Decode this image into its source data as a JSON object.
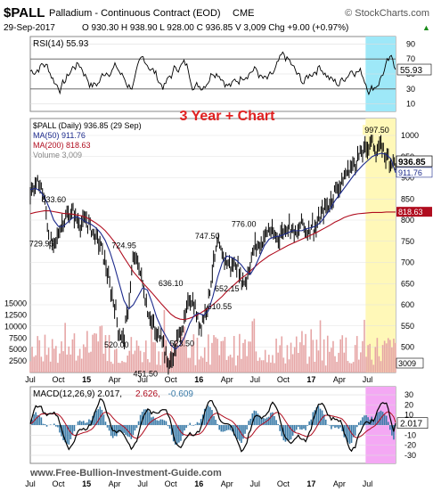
{
  "header": {
    "symbol": "$PALL",
    "name": "Palladium - Continuous Contract (EOD)",
    "exchange": "CME",
    "brand": "© StockCharts.com",
    "date": "29-Sep-2017",
    "ohlc": "O 930.30  H 938.90  L 928.00  C 936.85  V 3,009  Chg +9.00 (+0.97%)",
    "ohlc_arrow": "▲"
  },
  "overlay_title": "3 Year + Chart",
  "footer_url": "www.Free-Bullion-Investment-Guide.com",
  "colors": {
    "price": "#000000",
    "ma50": "#1c2a8c",
    "ma200": "#b00d1f",
    "highlight_yellow": "#fff8b8",
    "highlight_cyan": "#9ee8f8",
    "highlight_magenta": "#f4a8f4",
    "volume": "#e6a6a6",
    "title_red": "#e02020",
    "macd_hist": "#3a7ba8"
  },
  "chart_data": [
    {
      "type": "line",
      "panel": "RSI",
      "legend": "RSI(14) 55.93",
      "y_ticks": [
        10,
        30,
        50,
        70,
        90
      ],
      "ylim": [
        0,
        100
      ],
      "last_value_label": "55.93",
      "overbought": 70,
      "oversold": 30
    },
    {
      "type": "line",
      "panel": "Price",
      "legend": [
        {
          "label": "$PALL (Daily) 936.85 (29 Sep)",
          "color": "#000000"
        },
        {
          "label": "MA(50) 911.76",
          "color": "#1c2a8c"
        },
        {
          "label": "MA(200) 818.63",
          "color": "#b00d1f"
        },
        {
          "label": "Volume 3,009",
          "color": "#888888"
        }
      ],
      "y_ticks_right": [
        500,
        550,
        600,
        650,
        700,
        750,
        800,
        850,
        900,
        950,
        1000
      ],
      "ylim": [
        440,
        1040
      ],
      "volume_ticks_left": [
        "2500",
        "5000",
        "7500",
        "10000",
        "12500",
        "15000"
      ],
      "volume_ticks_values": [
        2500,
        5000,
        7500,
        10000,
        12500,
        15000
      ],
      "right_labels": {
        "price": "936.85",
        "ma50": "911.76",
        "ma200": "818.63",
        "volume": "3009"
      },
      "annotations": [
        {
          "label": "997.50",
          "x": 37.0,
          "y": 997.5
        },
        {
          "label": "833.60",
          "x": 2.5,
          "y": 833.6
        },
        {
          "label": "729.95",
          "x": 1.2,
          "y": 729.95
        },
        {
          "label": "724.95",
          "x": 10.0,
          "y": 724.95
        },
        {
          "label": "520.00",
          "x": 9.2,
          "y": 520.0
        },
        {
          "label": "451.50",
          "x": 12.3,
          "y": 451.5
        },
        {
          "label": "636.10",
          "x": 15.0,
          "y": 636.1
        },
        {
          "label": "523.50",
          "x": 16.2,
          "y": 523.5
        },
        {
          "label": "747.50",
          "x": 18.9,
          "y": 747.5
        },
        {
          "label": "652.15",
          "x": 21.0,
          "y": 652.15
        },
        {
          "label": "610.55",
          "x": 20.2,
          "y": 610.55
        },
        {
          "label": "776.00",
          "x": 22.8,
          "y": 776.0
        }
      ],
      "price_series_x_unit": "months since Jul 2014",
      "price_x": [
        0,
        0.5,
        1,
        1.5,
        2,
        2.5,
        3,
        3.5,
        4,
        4.5,
        5,
        5.5,
        6,
        6.5,
        7,
        7.5,
        8,
        8.5,
        9,
        9.5,
        10,
        10.5,
        11,
        11.5,
        12,
        12.5,
        13,
        13.5,
        14,
        14.5,
        15,
        15.5,
        16,
        16.5,
        17,
        17.5,
        18,
        18.5,
        19,
        19.5,
        20,
        20.5,
        21,
        21.5,
        22,
        22.5,
        23,
        23.5,
        24,
        24.5,
        25,
        25.5,
        26,
        26.5,
        27,
        27.5,
        28,
        28.5,
        29,
        29.5,
        30,
        30.5,
        31,
        31.5,
        32,
        32.5,
        33,
        33.5,
        34,
        34.5,
        35,
        35.5,
        36,
        36.5,
        37,
        37.5,
        38,
        38.5,
        39
      ],
      "price_y": [
        870,
        880,
        889,
        850,
        760,
        730,
        770,
        800,
        810,
        820,
        800,
        790,
        800,
        780,
        760,
        740,
        700,
        640,
        600,
        530,
        520,
        600,
        710,
        700,
        650,
        590,
        560,
        520,
        540,
        470,
        460,
        500,
        540,
        560,
        620,
        600,
        550,
        570,
        610,
        690,
        740,
        720,
        700,
        690,
        700,
        660,
        655,
        700,
        740,
        740,
        760,
        780,
        760,
        760,
        775,
        790,
        780,
        760,
        800,
        770,
        790,
        780,
        810,
        830,
        840,
        870,
        880,
        900,
        920,
        930,
        950,
        960,
        975,
        990,
        960,
        975,
        950,
        940,
        937
      ],
      "ma50_y": [
        872,
        875,
        870,
        855,
        830,
        800,
        785,
        785,
        795,
        805,
        808,
        802,
        795,
        790,
        782,
        770,
        752,
        725,
        690,
        650,
        610,
        590,
        600,
        620,
        640,
        635,
        605,
        570,
        545,
        525,
        505,
        495,
        505,
        525,
        555,
        575,
        580,
        575,
        585,
        620,
        665,
        700,
        715,
        712,
        705,
        695,
        680,
        672,
        690,
        715,
        740,
        755,
        760,
        762,
        765,
        770,
        775,
        775,
        775,
        780,
        782,
        786,
        795,
        810,
        825,
        845,
        860,
        875,
        890,
        905,
        918,
        930,
        940,
        950,
        955,
        958,
        955,
        945,
        912
      ],
      "ma200_y": [
        815,
        818,
        820,
        822,
        822,
        820,
        818,
        816,
        815,
        814,
        812,
        810,
        806,
        800,
        793,
        785,
        775,
        762,
        748,
        730,
        712,
        695,
        678,
        665,
        652,
        640,
        628,
        615,
        602,
        590,
        578,
        570,
        566,
        565,
        568,
        572,
        578,
        585,
        592,
        600,
        610,
        620,
        632,
        642,
        652,
        662,
        670,
        680,
        690,
        700,
        708,
        716,
        722,
        728,
        734,
        740,
        745,
        750,
        755,
        760,
        765,
        770,
        776,
        782,
        788,
        795,
        800,
        806,
        810,
        813,
        815,
        816,
        817,
        818,
        818,
        818,
        819,
        819,
        819
      ]
    },
    {
      "type": "line",
      "panel": "MACD",
      "legend": [
        {
          "label": "MACD(12,26,9) 2.017,",
          "color": "#000000"
        },
        {
          "label": "2.626,",
          "color": "#b00d1f"
        },
        {
          "label": "-0.609",
          "color": "#3a7ba8"
        }
      ],
      "y_ticks": [
        -30,
        -20,
        -10,
        0,
        10,
        20,
        30
      ],
      "ylim": [
        -38,
        38
      ],
      "last_value_label": "2.017"
    },
    {
      "type": "axis",
      "panel": "x-axis",
      "tick_labels": [
        "Jul",
        "Oct",
        "15",
        "Apr",
        "Jul",
        "Oct",
        "16",
        "Apr",
        "Jul",
        "Oct",
        "17",
        "Apr",
        "Jul"
      ],
      "tick_values": [
        0,
        3,
        6,
        9,
        12,
        15,
        18,
        21,
        24,
        27,
        30,
        33,
        36
      ]
    }
  ]
}
